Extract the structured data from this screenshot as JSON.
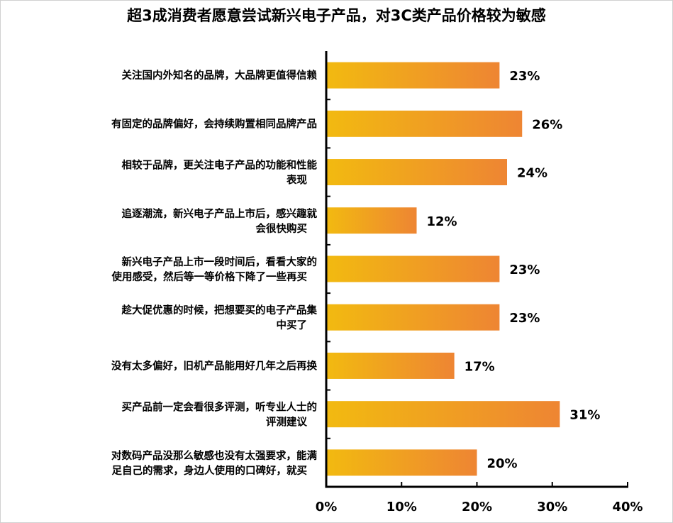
{
  "chart_data": {
    "type": "bar",
    "orientation": "horizontal",
    "title": "超3成消费者愿意尝试新兴电子产品，对3C类产品价格较为敏感",
    "categories": [
      [
        "关注国内外知名的品牌，大品牌更值得信赖"
      ],
      [
        "有固定的品牌偏好，会持续购置相同品牌产品"
      ],
      [
        "相较于品牌，更关注电子产品的功能和性能",
        "表现"
      ],
      [
        "追逐潮流，新兴电子产品上市后，感兴趣就",
        "会很快购买"
      ],
      [
        "新兴电子产品上市一段时间后，看看大家的",
        "使用感受，然后等一等价格下降了一些再买"
      ],
      [
        "趁大促优惠的时候，把想要买的电子产品集",
        "中买了"
      ],
      [
        "没有太多偏好，旧机产品能用好几年之后再换"
      ],
      [
        "买产品前一定会看很多评测，听专业人士的",
        "评测建议"
      ],
      [
        "对数码产品没那么敏感也没有太强要求，能满",
        "足自己的需求，身边人使用的口碑好，就买"
      ]
    ],
    "values": [
      23,
      26,
      24,
      12,
      23,
      23,
      17,
      31,
      20
    ],
    "value_labels": [
      "23%",
      "26%",
      "24%",
      "12%",
      "23%",
      "23%",
      "17%",
      "31%",
      "20%"
    ],
    "xlim": [
      0,
      40
    ],
    "xticks": [
      0,
      10,
      20,
      30,
      40
    ],
    "xtick_labels": [
      "0%",
      "10%",
      "20%",
      "30%",
      "40%"
    ],
    "xlabel": "",
    "ylabel": "",
    "grid": false,
    "colors": {
      "bar_start": "#F2BA10",
      "bar_end": "#EE8533",
      "axis": "#000000"
    }
  }
}
